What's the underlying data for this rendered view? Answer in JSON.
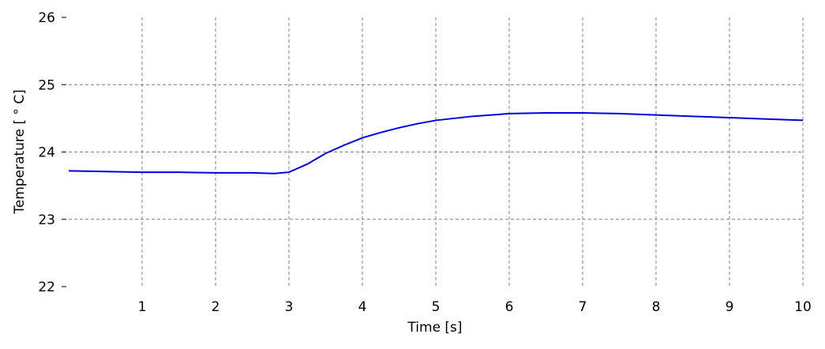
{
  "chart_data": {
    "type": "line",
    "x_label": "Time [s]",
    "y_label": "Temperature [ ° C]",
    "x": [
      0,
      0.5,
      1,
      1.5,
      2,
      2.5,
      2.8,
      3.0,
      3.25,
      3.5,
      3.75,
      4,
      4.25,
      4.5,
      4.75,
      5,
      5.5,
      6,
      6.5,
      7,
      7.5,
      8,
      8.5,
      9,
      9.5,
      10
    ],
    "series": [
      {
        "name": "Temperature",
        "color": "#0000dd",
        "values": [
          23.72,
          23.71,
          23.7,
          23.7,
          23.69,
          23.69,
          23.68,
          23.7,
          23.82,
          23.98,
          24.1,
          24.21,
          24.29,
          24.36,
          24.42,
          24.47,
          24.53,
          24.57,
          24.58,
          24.58,
          24.57,
          24.55,
          24.53,
          24.51,
          24.49,
          24.47
        ]
      }
    ],
    "xlim": [
      0,
      10
    ],
    "xticks": [
      1,
      2,
      3,
      4,
      5,
      6,
      7,
      8,
      9,
      10
    ],
    "ylim": [
      22,
      26
    ],
    "yticks": [
      22,
      23,
      24,
      25,
      26
    ],
    "grid": true
  }
}
